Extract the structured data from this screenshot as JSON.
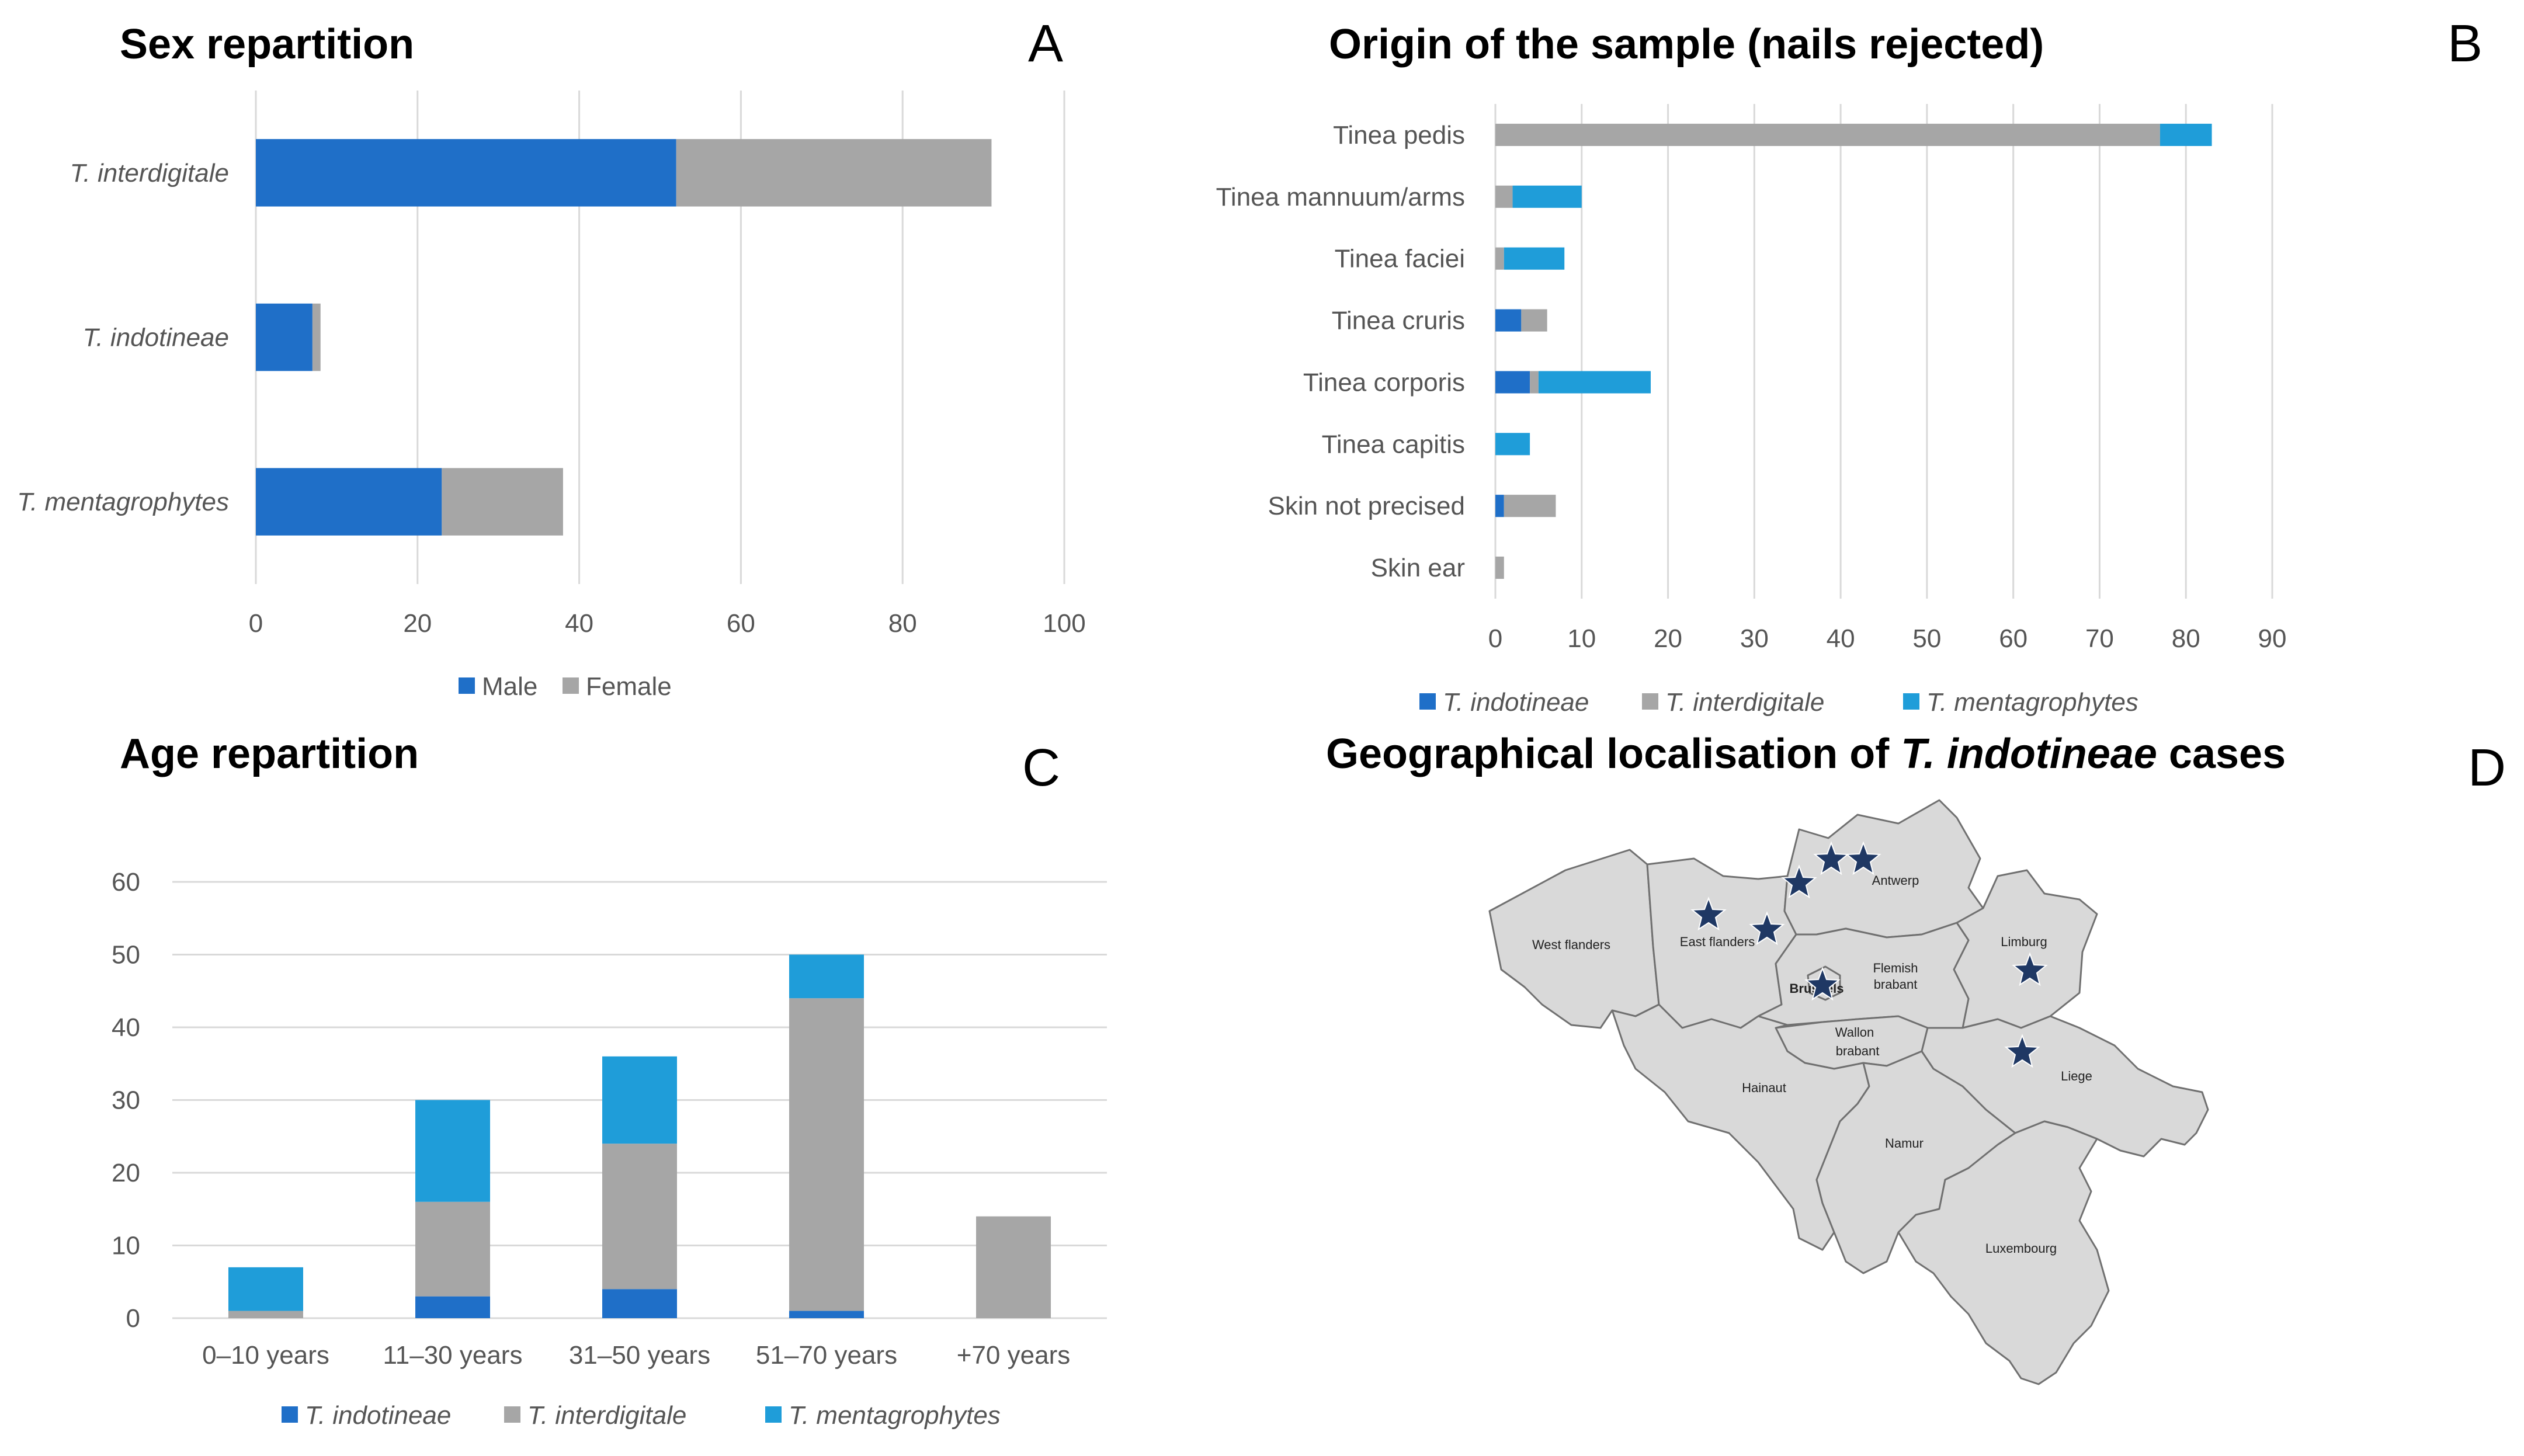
{
  "colors": {
    "t_indotineae": "#1f6fc8",
    "t_interdigitale": "#a6a6a6",
    "t_mentagrophytes": "#1f9dd9",
    "male": "#1f6fc8",
    "female": "#a6a6a6",
    "grid": "#d9d9d9",
    "map_fill": "#d9d9d9",
    "map_stroke": "#707070",
    "star": "#1f3864"
  },
  "chart_data": [
    {
      "panel": "A",
      "type": "bar",
      "orientation": "horizontal",
      "stacked": true,
      "title": "Sex repartition",
      "categories": [
        "T. interdigitale",
        "T. indotineae",
        "T. mentagrophytes"
      ],
      "series": [
        {
          "name": "Male",
          "color_key": "male",
          "values": [
            52,
            7,
            23
          ]
        },
        {
          "name": "Female",
          "color_key": "female",
          "values": [
            39,
            1,
            15
          ]
        }
      ],
      "xlim": [
        0,
        100
      ],
      "xticks": [
        0,
        20,
        40,
        60,
        80,
        100
      ],
      "grid": true,
      "legend": "bottom"
    },
    {
      "panel": "B",
      "type": "bar",
      "orientation": "horizontal",
      "stacked": true,
      "title": "Origin of the sample (nails rejected)",
      "categories": [
        "Tinea pedis",
        "Tinea mannuum/arms",
        "Tinea faciei",
        "Tinea cruris",
        "Tinea corporis",
        "Tinea capitis",
        "Skin not precised",
        "Skin ear"
      ],
      "series": [
        {
          "name": "T. indotineae",
          "color_key": "t_indotineae",
          "values": [
            0,
            0,
            0,
            3,
            4,
            0,
            1,
            0
          ]
        },
        {
          "name": "T. interdigitale",
          "color_key": "t_interdigitale",
          "values": [
            77,
            2,
            1,
            3,
            1,
            0,
            6,
            1
          ]
        },
        {
          "name": "T. mentagrophytes",
          "color_key": "t_mentagrophytes",
          "values": [
            6,
            8,
            7,
            0,
            13,
            4,
            0,
            0
          ]
        }
      ],
      "xlim": [
        0,
        90
      ],
      "xticks": [
        0,
        10,
        20,
        30,
        40,
        50,
        60,
        70,
        80,
        90
      ],
      "grid": true,
      "legend": "bottom"
    },
    {
      "panel": "C",
      "type": "bar",
      "orientation": "vertical",
      "stacked": true,
      "title": "Age repartition",
      "categories": [
        "0–10 years",
        "11–30 years",
        "31–50 years",
        "51–70 years",
        "+70 years"
      ],
      "series": [
        {
          "name": "T. indotineae",
          "color_key": "t_indotineae",
          "values": [
            0,
            3,
            4,
            1,
            0
          ]
        },
        {
          "name": "T. interdigitale",
          "color_key": "t_interdigitale",
          "values": [
            1,
            13,
            20,
            43,
            14
          ]
        },
        {
          "name": "T. mentagrophytes",
          "color_key": "t_mentagrophytes",
          "values": [
            6,
            14,
            12,
            6,
            0
          ]
        }
      ],
      "ylim": [
        0,
        60
      ],
      "yticks": [
        0,
        10,
        20,
        30,
        40,
        50,
        60
      ],
      "grid": true,
      "legend": "bottom"
    }
  ],
  "panels": {
    "a": {
      "title": "Sex repartition",
      "label": "A"
    },
    "b": {
      "title": "Origin of the sample (nails rejected)",
      "label": "B"
    },
    "c": {
      "title": "Age repartition",
      "label": "C"
    },
    "d": {
      "title_pre": "Geographical localisation of ",
      "title_em": "T. indotineae",
      "title_post": " cases",
      "label": "D",
      "regions": {
        "west_flanders": "West flanders",
        "east_flanders": "East flanders",
        "antwerp": "Antwerp",
        "limburg": "Limburg",
        "flemish_brabant_1": "Flemish",
        "flemish_brabant_2": "brabant",
        "brussels": "Brussels",
        "walloon_brabant_1": "Wallon",
        "walloon_brabant_2": "brabant",
        "hainaut": "Hainaut",
        "namur": "Namur",
        "liege": "Liege",
        "luxembourg": "Luxembourg"
      },
      "case_count": 8
    }
  }
}
